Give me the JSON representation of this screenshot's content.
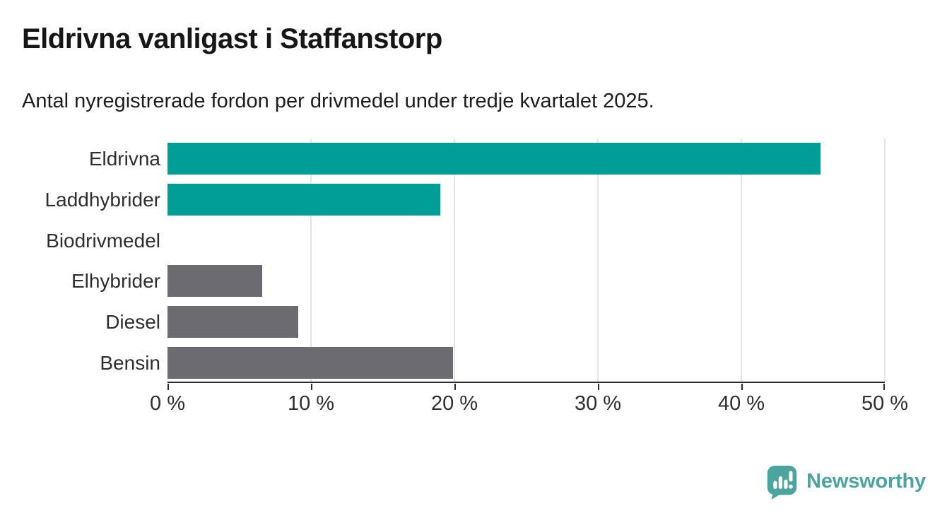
{
  "header": {
    "title": "Eldrivna vanligast i Staffanstorp",
    "subtitle": "Antal nyregistrerade fordon per drivmedel under tredje kvartalet 2025."
  },
  "chart_data": {
    "type": "bar",
    "orientation": "horizontal",
    "title": "Eldrivna vanligast i Staffanstorp",
    "subtitle": "Antal nyregistrerade fordon per drivmedel under tredje kvartalet 2025.",
    "categories": [
      "Eldrivna",
      "Laddhybrider",
      "Biodrivmedel",
      "Elhybrider",
      "Diesel",
      "Bensin"
    ],
    "values": [
      45.5,
      19.0,
      0,
      6.6,
      9.1,
      19.9
    ],
    "unit": "%",
    "bar_colors": [
      "#009e96",
      "#009e96",
      "#6c6b72",
      "#6c6b72",
      "#6c6b72",
      "#6c6b72"
    ],
    "xlim": [
      0,
      50
    ],
    "x_ticks": [
      0,
      10,
      20,
      30,
      40,
      50
    ],
    "x_tick_labels": [
      "0 %",
      "10 %",
      "20 %",
      "30 %",
      "40 %",
      "50 %"
    ],
    "grid": "vertical-gridlines-on",
    "gridline_color": "#e4e4e4",
    "axis_color": "#2b2b2b",
    "legend": "none"
  },
  "footer": {
    "brand_name": "Newsworthy",
    "brand_color": "#4ba49d",
    "logo_icon": "newsworthy-speech-bubble-bar-chart-icon"
  }
}
